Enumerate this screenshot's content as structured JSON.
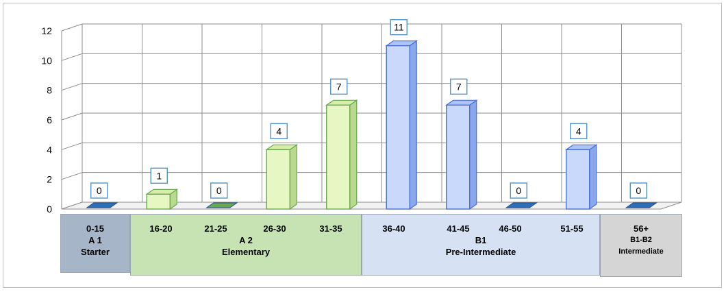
{
  "chart_data": {
    "type": "bar",
    "categories": [
      "0-15",
      "16-20",
      "21-25",
      "26-30",
      "31-35",
      "36-40",
      "41-45",
      "46-50",
      "51-55",
      "56+"
    ],
    "values": [
      0,
      1,
      0,
      4,
      7,
      11,
      7,
      0,
      4,
      0
    ],
    "ylim": [
      0,
      12
    ],
    "yticks": [
      0,
      2,
      4,
      6,
      8,
      10,
      12
    ],
    "grid": true,
    "colors": {
      "green_face": "#e6f7c4",
      "green_edge": "#6aa84f",
      "blue_face": "#c9d9fb",
      "blue_edge": "#4a6fd6",
      "zero_plate": "#2f6db5"
    },
    "levels": [
      {
        "range": "0-15",
        "code": "A 1",
        "name": "Starter",
        "fill": "#a7b5c8"
      },
      {
        "code": "A 2",
        "name": "Elementary",
        "fill": "#c7e3b3",
        "ranges": [
          "16-20",
          "21-25",
          "26-30",
          "31-35"
        ]
      },
      {
        "code": "B1",
        "name": "Pre-Intermediate",
        "fill": "#d6e1f3",
        "ranges": [
          "36-40",
          "41-45",
          "46-50",
          "51-55"
        ]
      },
      {
        "range": "56+",
        "code": "B1-B2",
        "name": "Intermediate",
        "fill": "#d5d5d5"
      }
    ]
  }
}
